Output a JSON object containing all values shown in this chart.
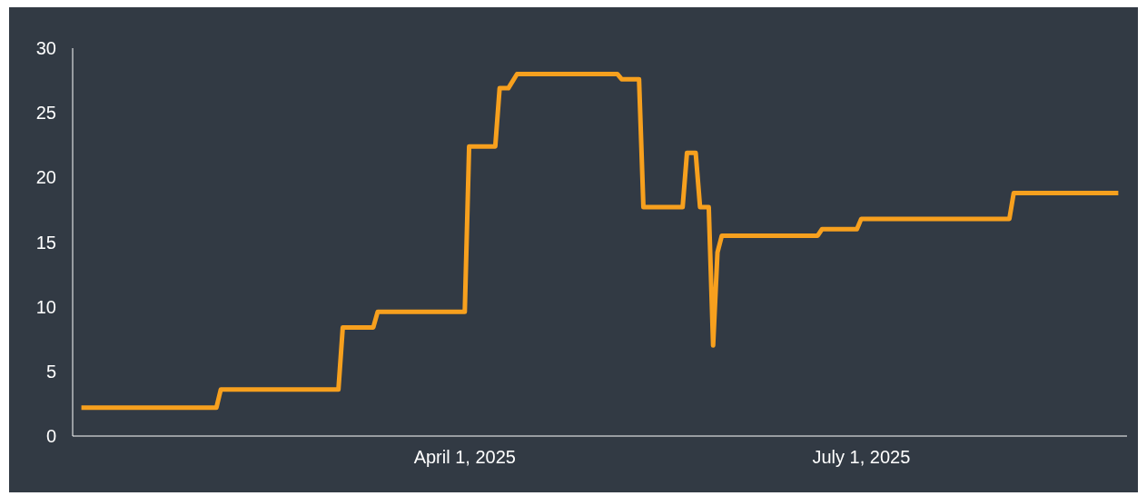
{
  "chart_data": {
    "type": "line",
    "x": [
      "2025-01-03",
      "2025-02-03",
      "2025-02-04",
      "2025-03-03",
      "2025-03-04",
      "2025-03-11",
      "2025-03-12",
      "2025-04-01",
      "2025-04-02",
      "2025-04-08",
      "2025-04-09",
      "2025-04-11",
      "2025-04-13",
      "2025-05-06",
      "2025-05-07",
      "2025-05-11",
      "2025-05-12",
      "2025-05-21",
      "2025-05-22",
      "2025-05-24",
      "2025-05-25",
      "2025-05-27",
      "2025-05-28",
      "2025-05-29",
      "2025-05-30",
      "2025-06-21",
      "2025-06-22",
      "2025-06-30",
      "2025-07-01",
      "2025-08-04",
      "2025-08-05",
      "2025-08-29"
    ],
    "series": [
      {
        "color": "#f7a01e",
        "values": [
          2.2,
          2.2,
          3.6,
          3.6,
          8.4,
          8.4,
          9.6,
          9.6,
          22.4,
          22.4,
          26.9,
          26.9,
          28.0,
          28.0,
          27.6,
          27.6,
          17.7,
          17.7,
          21.9,
          21.9,
          17.7,
          17.7,
          7.0,
          14.2,
          15.5,
          15.5,
          16.0,
          16.0,
          16.8,
          16.8,
          18.8,
          18.8
        ]
      }
    ],
    "xlim": [
      "2025-01-01",
      "2025-08-31"
    ],
    "xticks": [
      {
        "value": "2025-04-01",
        "label": "April 1, 2025"
      },
      {
        "value": "2025-07-01",
        "label": "July 1, 2025"
      }
    ],
    "ylim": [
      0,
      30
    ],
    "yticks": [
      0,
      5,
      10,
      15,
      20,
      25,
      30
    ],
    "grid": false,
    "legend": false,
    "marker": "none",
    "line_style": "solid"
  }
}
